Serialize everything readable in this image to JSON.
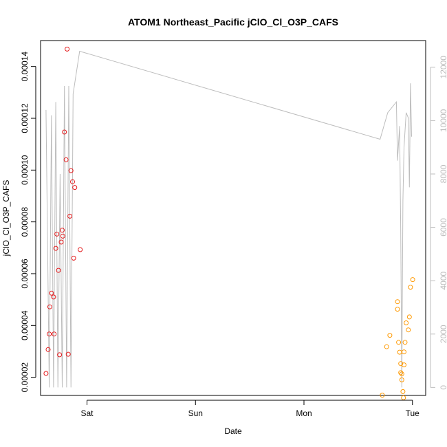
{
  "chart_data": {
    "type": "scatter",
    "title": "ATOM1 Northeast_Pacific jClO_Cl_O3P_CAFS",
    "xlabel": "Date",
    "ylabel": "jClO_Cl_O3P_CAFS",
    "x_unit": "days",
    "xlim": [
      0,
      3.55
    ],
    "ylim": [
      1.3e-05,
      0.00015
    ],
    "y2lim": [
      -300,
      13000
    ],
    "x_ticks": [
      {
        "value": 0.428,
        "label": "Sat"
      },
      {
        "value": 1.428,
        "label": "Sun"
      },
      {
        "value": 2.428,
        "label": "Mon"
      },
      {
        "value": 3.428,
        "label": "Tue"
      }
    ],
    "y_ticks": [
      {
        "value": 2e-05,
        "label": "0.00002"
      },
      {
        "value": 4e-05,
        "label": "0.00004"
      },
      {
        "value": 6e-05,
        "label": "0.00006"
      },
      {
        "value": 8e-05,
        "label": "0.00008"
      },
      {
        "value": 0.0001,
        "label": "0.00010"
      },
      {
        "value": 0.00012,
        "label": "0.00012"
      },
      {
        "value": 0.00014,
        "label": "0.00014"
      }
    ],
    "y2_ticks": [
      {
        "value": 0,
        "label": "0"
      },
      {
        "value": 2000,
        "label": "2000"
      },
      {
        "value": 4000,
        "label": "4000"
      },
      {
        "value": 6000,
        "label": "6000"
      },
      {
        "value": 8000,
        "label": "8000"
      },
      {
        "value": 10000,
        "label": "10000"
      },
      {
        "value": 12000,
        "label": "12000"
      }
    ],
    "grid": false,
    "series": [
      {
        "color": "#e41a1c",
        "marker": "open-circle",
        "points": [
          [
            0.05,
            2.15e-05
          ],
          [
            0.07,
            3.07e-05
          ],
          [
            0.08,
            3.67e-05
          ],
          [
            0.085,
            4.72e-05
          ],
          [
            0.1,
            5.25e-05
          ],
          [
            0.12,
            5.1e-05
          ],
          [
            0.125,
            3.67e-05
          ],
          [
            0.14,
            6.98e-05
          ],
          [
            0.15,
            7.53e-05
          ],
          [
            0.165,
            6.13e-05
          ],
          [
            0.175,
            2.87e-05
          ],
          [
            0.19,
            7.22e-05
          ],
          [
            0.2,
            7.68e-05
          ],
          [
            0.205,
            7.45e-05
          ],
          [
            0.22,
            0.0001147
          ],
          [
            0.235,
            0.000104
          ],
          [
            0.245,
            0.0001467
          ],
          [
            0.255,
            2.89e-05
          ],
          [
            0.27,
            8.22e-05
          ],
          [
            0.28,
            9.98e-05
          ],
          [
            0.295,
            9.55e-05
          ],
          [
            0.305,
            6.6e-05
          ],
          [
            0.315,
            9.33e-05
          ],
          [
            0.365,
            6.93e-05
          ]
        ]
      },
      {
        "color": "#ff9900",
        "marker": "open-circle",
        "points": [
          [
            3.15,
            1.31e-05
          ],
          [
            3.19,
            3.18e-05
          ],
          [
            3.22,
            3.62e-05
          ],
          [
            3.29,
            4.63e-05
          ],
          [
            3.29,
            4.92e-05
          ],
          [
            3.3,
            3.35e-05
          ],
          [
            3.31,
            2.97e-05
          ],
          [
            3.32,
            2.53e-05
          ],
          [
            3.32,
            2.18e-05
          ],
          [
            3.33,
            2.13e-05
          ],
          [
            3.33,
            1.9e-05
          ],
          [
            3.34,
            1.45e-05
          ],
          [
            3.345,
            1.21e-05
          ],
          [
            3.35,
            2.98e-05
          ],
          [
            3.35,
            2.48e-05
          ],
          [
            3.36,
            3.35e-05
          ],
          [
            3.37,
            4.1e-05
          ],
          [
            3.39,
            3.83e-05
          ],
          [
            3.4,
            4.33e-05
          ],
          [
            3.41,
            5.48e-05
          ],
          [
            3.43,
            5.77e-05
          ]
        ]
      }
    ],
    "secondary_line": {
      "color": "#bdbdbd",
      "points": [
        [
          0.05,
          10400
        ],
        [
          0.08,
          0
        ],
        [
          0.1,
          10200
        ],
        [
          0.12,
          0
        ],
        [
          0.14,
          10700
        ],
        [
          0.16,
          0
        ],
        [
          0.18,
          8000
        ],
        [
          0.2,
          0
        ],
        [
          0.22,
          11300
        ],
        [
          0.24,
          0
        ],
        [
          0.26,
          11300
        ],
        [
          0.28,
          0
        ],
        [
          0.3,
          11000
        ],
        [
          0.36,
          12600
        ],
        [
          3.13,
          9300
        ],
        [
          3.2,
          10300
        ],
        [
          3.28,
          10700
        ],
        [
          3.29,
          8500
        ],
        [
          3.31,
          9800
        ],
        [
          3.32,
          5900
        ],
        [
          3.33,
          0
        ],
        [
          3.34,
          7000
        ],
        [
          3.35,
          9000
        ],
        [
          3.37,
          10300
        ],
        [
          3.39,
          10100
        ],
        [
          3.4,
          7500
        ],
        [
          3.41,
          11400
        ],
        [
          3.42,
          9400
        ]
      ]
    }
  }
}
